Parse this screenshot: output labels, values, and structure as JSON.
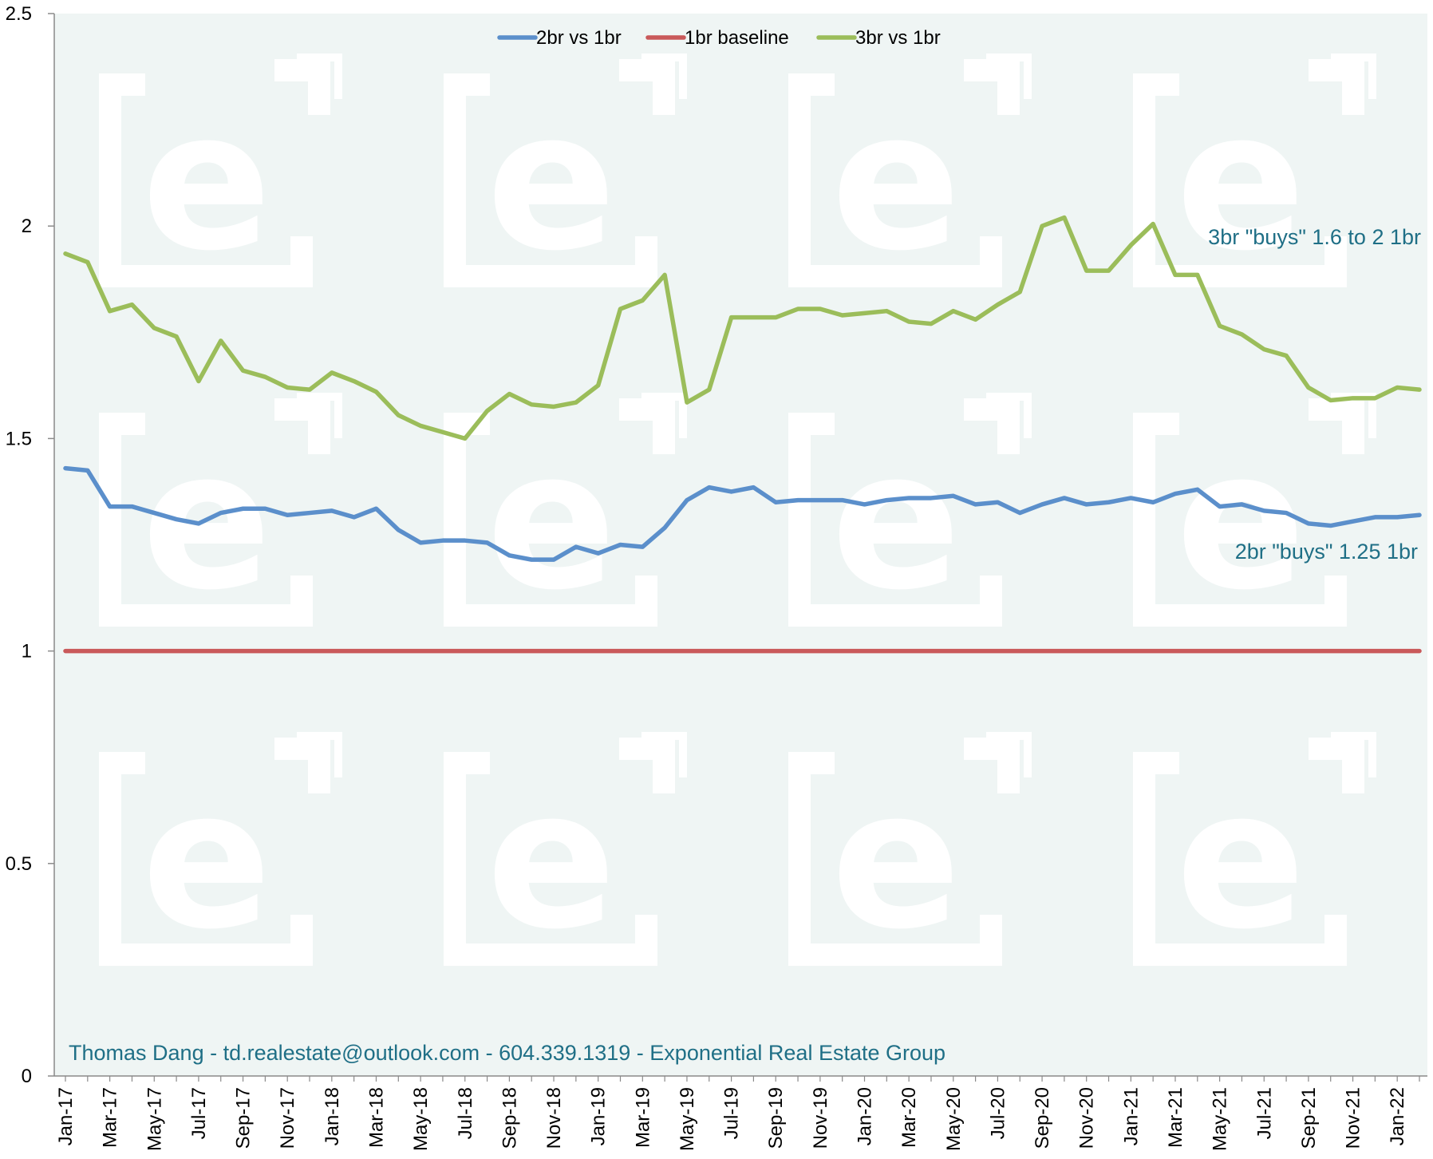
{
  "colors": {
    "plot_bg": "#eff5f4",
    "watermark": "#ffffff",
    "series_2br": "#5b8fcb",
    "series_1br": "#c9595a",
    "series_3br": "#9bbd5a",
    "annotation": "#1f6f86"
  },
  "watermark_icon": "exponential-e-logo",
  "chart_data": {
    "type": "line",
    "x": [
      "Jan-17",
      "Feb-17",
      "Mar-17",
      "Apr-17",
      "May-17",
      "Jun-17",
      "Jul-17",
      "Aug-17",
      "Sep-17",
      "Oct-17",
      "Nov-17",
      "Dec-17",
      "Jan-18",
      "Feb-18",
      "Mar-18",
      "Apr-18",
      "May-18",
      "Jun-18",
      "Jul-18",
      "Aug-18",
      "Sep-18",
      "Oct-18",
      "Nov-18",
      "Dec-18",
      "Jan-19",
      "Feb-19",
      "Mar-19",
      "Apr-19",
      "May-19",
      "Jun-19",
      "Jul-19",
      "Aug-19",
      "Sep-19",
      "Oct-19",
      "Nov-19",
      "Dec-19",
      "Jan-20",
      "Feb-20",
      "Mar-20",
      "Apr-20",
      "May-20",
      "Jun-20",
      "Jul-20",
      "Aug-20",
      "Sep-20",
      "Oct-20",
      "Nov-20",
      "Dec-20",
      "Jan-21",
      "Feb-21",
      "Mar-21",
      "Apr-21",
      "May-21",
      "Jun-21",
      "Jul-21",
      "Aug-21",
      "Sep-21",
      "Oct-21",
      "Nov-21",
      "Dec-21",
      "Jan-22",
      "Feb-22"
    ],
    "xtick_labels": [
      "Jan-17",
      "Mar-17",
      "May-17",
      "Jul-17",
      "Sep-17",
      "Nov-17",
      "Jan-18",
      "Mar-18",
      "May-18",
      "Jul-18",
      "Sep-18",
      "Nov-18",
      "Jan-19",
      "Mar-19",
      "May-19",
      "Jul-19",
      "Sep-19",
      "Nov-19",
      "Jan-20",
      "Mar-20",
      "May-20",
      "Jul-20",
      "Sep-20",
      "Nov-20",
      "Jan-21",
      "Mar-21",
      "May-21",
      "Jul-21",
      "Sep-21",
      "Nov-21",
      "Jan-22"
    ],
    "yticks": [
      "0",
      "0.5",
      "1",
      "1.5",
      "2",
      "2.5"
    ],
    "ylim": [
      0,
      2.5
    ],
    "grid": false,
    "legend_position": "top-center",
    "series": [
      {
        "name": "2br vs 1br",
        "values": [
          1.43,
          1.425,
          1.34,
          1.34,
          1.325,
          1.31,
          1.3,
          1.325,
          1.335,
          1.335,
          1.32,
          1.325,
          1.33,
          1.315,
          1.335,
          1.285,
          1.255,
          1.26,
          1.26,
          1.255,
          1.225,
          1.215,
          1.215,
          1.245,
          1.23,
          1.25,
          1.245,
          1.29,
          1.355,
          1.385,
          1.375,
          1.385,
          1.35,
          1.355,
          1.355,
          1.355,
          1.345,
          1.355,
          1.36,
          1.36,
          1.365,
          1.345,
          1.35,
          1.325,
          1.345,
          1.36,
          1.345,
          1.35,
          1.36,
          1.35,
          1.37,
          1.38,
          1.34,
          1.345,
          1.33,
          1.325,
          1.3,
          1.295,
          1.305,
          1.315,
          1.315,
          1.32
        ]
      },
      {
        "name": "1br baseline",
        "values": [
          1,
          1,
          1,
          1,
          1,
          1,
          1,
          1,
          1,
          1,
          1,
          1,
          1,
          1,
          1,
          1,
          1,
          1,
          1,
          1,
          1,
          1,
          1,
          1,
          1,
          1,
          1,
          1,
          1,
          1,
          1,
          1,
          1,
          1,
          1,
          1,
          1,
          1,
          1,
          1,
          1,
          1,
          1,
          1,
          1,
          1,
          1,
          1,
          1,
          1,
          1,
          1,
          1,
          1,
          1,
          1,
          1,
          1,
          1,
          1,
          1,
          1
        ]
      },
      {
        "name": "3br vs 1br",
        "values": [
          1.935,
          1.915,
          1.8,
          1.815,
          1.76,
          1.74,
          1.635,
          1.73,
          1.66,
          1.645,
          1.62,
          1.615,
          1.655,
          1.635,
          1.61,
          1.555,
          1.53,
          1.515,
          1.5,
          1.565,
          1.605,
          1.58,
          1.575,
          1.585,
          1.625,
          1.805,
          1.825,
          1.885,
          1.585,
          1.615,
          1.785,
          1.785,
          1.785,
          1.805,
          1.805,
          1.79,
          1.795,
          1.8,
          1.775,
          1.77,
          1.8,
          1.78,
          1.815,
          1.845,
          2.0,
          2.02,
          1.895,
          1.895,
          1.955,
          2.005,
          1.885,
          1.885,
          1.765,
          1.745,
          1.71,
          1.695,
          1.62,
          1.59,
          1.595,
          1.595,
          1.62,
          1.615
        ]
      }
    ],
    "annotations": [
      {
        "text": "3br \"buys\" 1.6 to 2 1br",
        "x": "Feb-22",
        "y": 1.96
      },
      {
        "text": "2br \"buys\" 1.25 1br",
        "x": "Feb-22",
        "y": 1.21
      }
    ]
  },
  "credit": "Thomas Dang - td.realestate@outlook.com - 604.339.1319 - Exponential Real Estate Group"
}
